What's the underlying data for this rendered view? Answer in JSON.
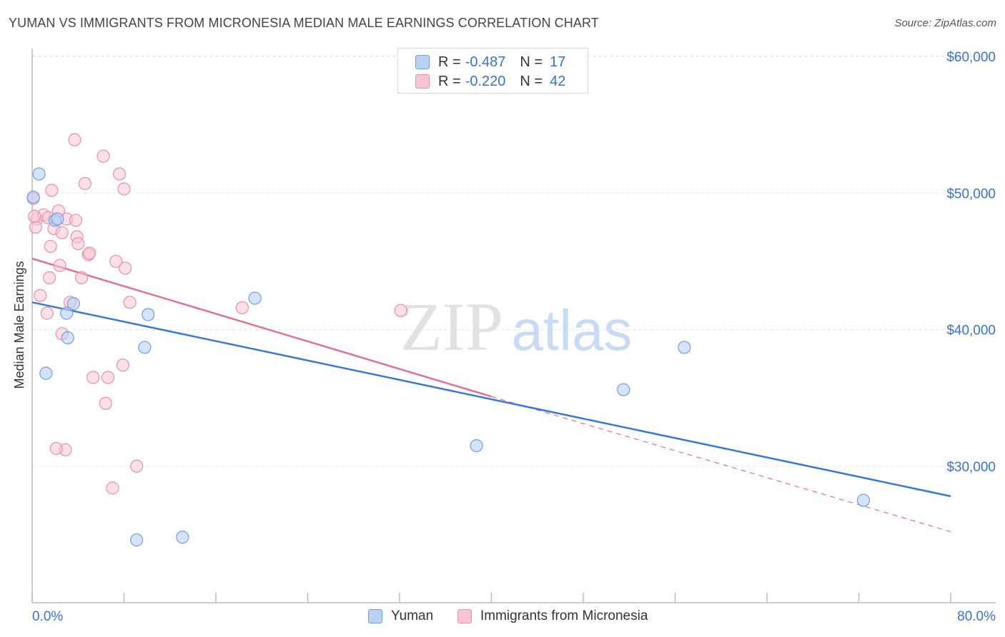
{
  "title": "YUMAN VS IMMIGRANTS FROM MICRONESIA MEDIAN MALE EARNINGS CORRELATION CHART",
  "source": "Source: ZipAtlas.com",
  "watermark": {
    "zip": "ZIP",
    "atlas": "atlas"
  },
  "legend": {
    "rows": [
      {
        "r_label": "R =",
        "r_value": "-0.487",
        "n_label": "N =",
        "n_value": "17"
      },
      {
        "r_label": "R =",
        "r_value": "-0.220",
        "n_label": "N =",
        "n_value": "42"
      }
    ]
  },
  "colors": {
    "yuman_fill": "#b9d1f3",
    "yuman_stroke": "#6f9fdd",
    "yuman_line": "#3a78d4",
    "micronesia_fill": "#f8c6d3",
    "micronesia_stroke": "#e690aa",
    "micronesia_line": "#e07098",
    "axis_label": "#3a72c8",
    "grid": "#e3e3e3"
  },
  "chart_data": {
    "type": "scatter",
    "title": "YUMAN VS IMMIGRANTS FROM MICRONESIA MEDIAN MALE EARNINGS CORRELATION CHART",
    "xlabel": "",
    "ylabel": "Median Male Earnings",
    "xlim": [
      0,
      80
    ],
    "ylim": [
      20000,
      61000
    ],
    "x_tick_labels": [
      "0.0%",
      "80.0%"
    ],
    "y_ticks": [
      {
        "value": 30000,
        "label": "$30,000"
      },
      {
        "value": 40000,
        "label": "$40,000"
      },
      {
        "value": 50000,
        "label": "$50,000"
      },
      {
        "value": 60000,
        "label": "$60,000"
      }
    ],
    "grid": true,
    "legend_position": "top-center",
    "series": [
      {
        "name": "Yuman",
        "points": [
          [
            0.1,
            49700
          ],
          [
            0.6,
            51400
          ],
          [
            2.0,
            48000
          ],
          [
            3.6,
            41900
          ],
          [
            2.2,
            48100
          ],
          [
            1.2,
            36800
          ],
          [
            3.1,
            39400
          ],
          [
            3.0,
            41200
          ],
          [
            10.1,
            41100
          ],
          [
            9.8,
            38700
          ],
          [
            19.4,
            42300
          ],
          [
            9.1,
            24600
          ],
          [
            13.1,
            24800
          ],
          [
            38.7,
            31500
          ],
          [
            51.5,
            35600
          ],
          [
            56.8,
            38700
          ],
          [
            72.4,
            27500
          ]
        ],
        "trend": {
          "x": [
            0,
            80
          ],
          "y": [
            42000,
            27800
          ]
        }
      },
      {
        "name": "Immigrants from Micronesia",
        "points": [
          [
            0.1,
            49600
          ],
          [
            0.4,
            48100
          ],
          [
            0.3,
            47500
          ],
          [
            0.7,
            42500
          ],
          [
            1.0,
            48400
          ],
          [
            1.4,
            48200
          ],
          [
            1.7,
            50200
          ],
          [
            1.9,
            47400
          ],
          [
            1.6,
            46100
          ],
          [
            1.5,
            43800
          ],
          [
            1.3,
            41200
          ],
          [
            2.4,
            44700
          ],
          [
            2.6,
            47100
          ],
          [
            2.6,
            39700
          ],
          [
            2.9,
            31200
          ],
          [
            3.0,
            48100
          ],
          [
            3.3,
            42000
          ],
          [
            3.8,
            48000
          ],
          [
            3.9,
            46800
          ],
          [
            4.0,
            46300
          ],
          [
            4.3,
            43800
          ],
          [
            4.6,
            50700
          ],
          [
            4.9,
            45500
          ],
          [
            5.0,
            45600
          ],
          [
            5.3,
            36500
          ],
          [
            3.7,
            53900
          ],
          [
            6.2,
            52700
          ],
          [
            6.4,
            34600
          ],
          [
            6.6,
            36500
          ],
          [
            7.0,
            28400
          ],
          [
            7.3,
            45000
          ],
          [
            7.6,
            51400
          ],
          [
            7.9,
            37400
          ],
          [
            8.1,
            44500
          ],
          [
            8.0,
            50300
          ],
          [
            8.5,
            42000
          ],
          [
            9.1,
            30000
          ],
          [
            18.3,
            41600
          ],
          [
            32.1,
            41400
          ],
          [
            2.1,
            31300
          ],
          [
            0.2,
            48300
          ],
          [
            2.3,
            48700
          ]
        ],
        "trend": {
          "x": [
            0,
            40
          ],
          "y": [
            45200,
            35100
          ]
        },
        "trend_dashed": {
          "x": [
            40,
            80
          ],
          "y": [
            35100,
            25200
          ]
        }
      }
    ]
  }
}
